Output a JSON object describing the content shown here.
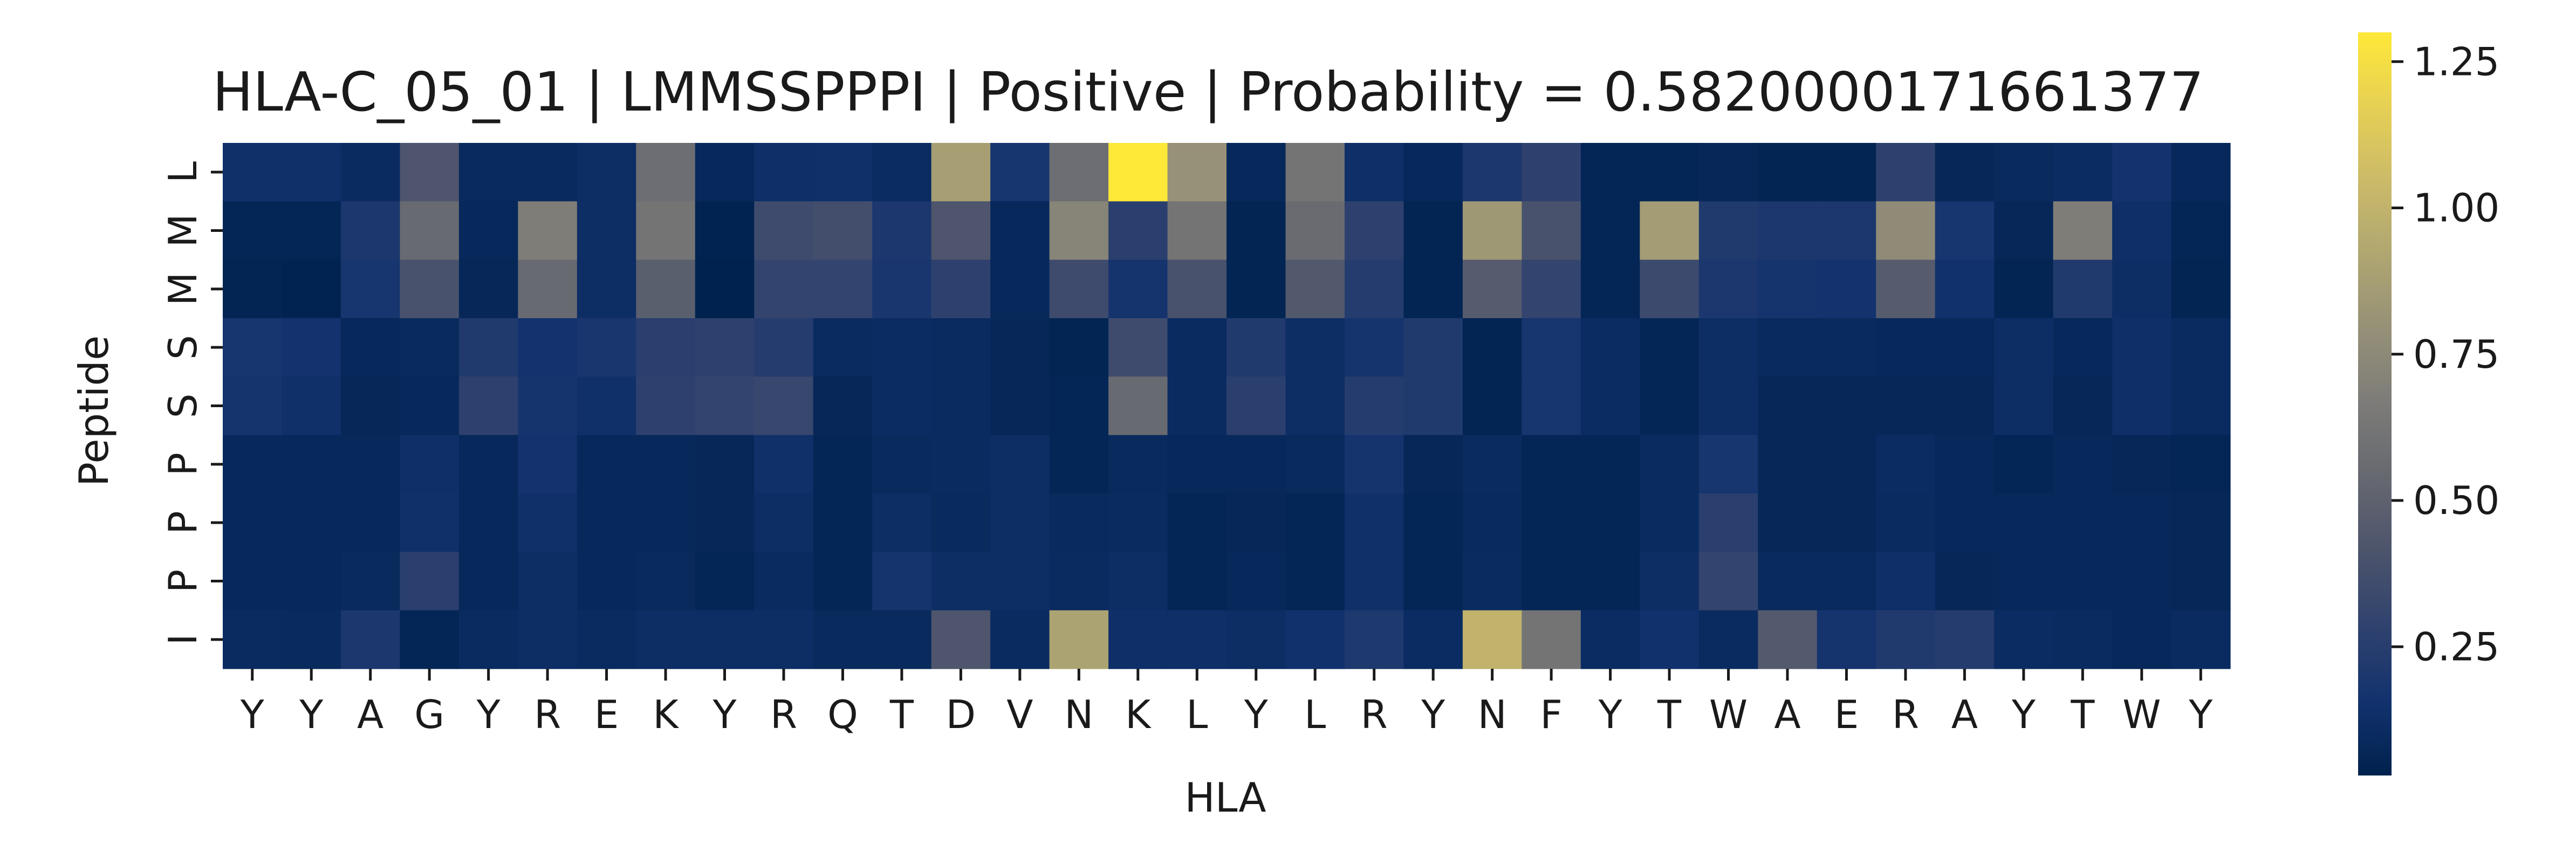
{
  "chart_data": {
    "type": "heatmap",
    "title": "HLA-C_05_01 | LMMSSPPPI | Positive | Probability = 0.5820000171661377",
    "xlabel": "HLA",
    "ylabel": "Peptide",
    "x_categories": [
      "Y",
      "Y",
      "A",
      "G",
      "Y",
      "R",
      "E",
      "K",
      "Y",
      "R",
      "Q",
      "T",
      "D",
      "V",
      "N",
      "K",
      "L",
      "Y",
      "L",
      "R",
      "Y",
      "N",
      "F",
      "Y",
      "T",
      "W",
      "A",
      "E",
      "R",
      "A",
      "Y",
      "T",
      "W",
      "Y"
    ],
    "y_categories": [
      "L",
      "M",
      "M",
      "S",
      "S",
      "P",
      "P",
      "P",
      "I"
    ],
    "values": [
      [
        0.14,
        0.14,
        0.1,
        0.42,
        0.09,
        0.09,
        0.12,
        0.58,
        0.08,
        0.13,
        0.14,
        0.11,
        0.88,
        0.18,
        0.58,
        1.3,
        0.8,
        0.08,
        0.62,
        0.13,
        0.08,
        0.2,
        0.28,
        0.06,
        0.06,
        0.07,
        0.05,
        0.05,
        0.28,
        0.07,
        0.09,
        0.11,
        0.16,
        0.08
      ],
      [
        0.06,
        0.06,
        0.2,
        0.55,
        0.08,
        0.68,
        0.12,
        0.62,
        0.04,
        0.35,
        0.37,
        0.2,
        0.42,
        0.08,
        0.72,
        0.26,
        0.62,
        0.05,
        0.56,
        0.28,
        0.05,
        0.84,
        0.4,
        0.06,
        0.86,
        0.22,
        0.2,
        0.2,
        0.76,
        0.18,
        0.07,
        0.68,
        0.13,
        0.06
      ],
      [
        0.05,
        0.04,
        0.18,
        0.4,
        0.07,
        0.55,
        0.12,
        0.48,
        0.03,
        0.3,
        0.3,
        0.19,
        0.28,
        0.08,
        0.35,
        0.17,
        0.4,
        0.05,
        0.44,
        0.24,
        0.05,
        0.46,
        0.3,
        0.06,
        0.34,
        0.2,
        0.17,
        0.16,
        0.46,
        0.15,
        0.05,
        0.22,
        0.12,
        0.05
      ],
      [
        0.18,
        0.16,
        0.08,
        0.09,
        0.22,
        0.16,
        0.19,
        0.26,
        0.28,
        0.24,
        0.1,
        0.11,
        0.1,
        0.07,
        0.05,
        0.35,
        0.1,
        0.22,
        0.12,
        0.17,
        0.22,
        0.05,
        0.18,
        0.11,
        0.06,
        0.12,
        0.09,
        0.09,
        0.08,
        0.08,
        0.12,
        0.08,
        0.13,
        0.1
      ],
      [
        0.17,
        0.14,
        0.07,
        0.08,
        0.28,
        0.17,
        0.14,
        0.28,
        0.3,
        0.32,
        0.07,
        0.11,
        0.1,
        0.07,
        0.06,
        0.55,
        0.1,
        0.26,
        0.12,
        0.24,
        0.22,
        0.05,
        0.18,
        0.11,
        0.06,
        0.12,
        0.07,
        0.07,
        0.07,
        0.07,
        0.12,
        0.07,
        0.13,
        0.1
      ],
      [
        0.08,
        0.08,
        0.08,
        0.13,
        0.08,
        0.16,
        0.08,
        0.08,
        0.07,
        0.14,
        0.06,
        0.09,
        0.1,
        0.12,
        0.06,
        0.09,
        0.08,
        0.08,
        0.09,
        0.17,
        0.07,
        0.1,
        0.06,
        0.06,
        0.1,
        0.18,
        0.07,
        0.07,
        0.11,
        0.08,
        0.06,
        0.08,
        0.07,
        0.06
      ],
      [
        0.08,
        0.08,
        0.08,
        0.14,
        0.08,
        0.14,
        0.08,
        0.08,
        0.07,
        0.12,
        0.06,
        0.12,
        0.09,
        0.12,
        0.09,
        0.1,
        0.06,
        0.07,
        0.06,
        0.14,
        0.06,
        0.09,
        0.06,
        0.06,
        0.1,
        0.26,
        0.07,
        0.07,
        0.1,
        0.08,
        0.08,
        0.08,
        0.08,
        0.07
      ],
      [
        0.08,
        0.08,
        0.09,
        0.26,
        0.08,
        0.12,
        0.08,
        0.09,
        0.06,
        0.1,
        0.06,
        0.17,
        0.12,
        0.12,
        0.1,
        0.12,
        0.06,
        0.08,
        0.06,
        0.14,
        0.06,
        0.1,
        0.06,
        0.06,
        0.12,
        0.3,
        0.09,
        0.09,
        0.13,
        0.07,
        0.08,
        0.08,
        0.08,
        0.07
      ],
      [
        0.1,
        0.09,
        0.2,
        0.06,
        0.1,
        0.12,
        0.1,
        0.12,
        0.12,
        0.12,
        0.09,
        0.09,
        0.42,
        0.1,
        0.9,
        0.13,
        0.13,
        0.12,
        0.15,
        0.21,
        0.11,
        1.0,
        0.62,
        0.11,
        0.15,
        0.1,
        0.45,
        0.17,
        0.22,
        0.24,
        0.11,
        0.1,
        0.08,
        0.1
      ]
    ],
    "colormap": "cividis",
    "vmin": 0.03,
    "vmax": 1.3,
    "colorbar_ticks": [
      "0.25",
      "0.50",
      "0.75",
      "1.00",
      "1.25"
    ],
    "colorbar_tick_values": [
      0.25,
      0.5,
      0.75,
      1.0,
      1.25
    ],
    "colors": {
      "low": "#00224e",
      "mid": "#7c7b78",
      "high": "#fee838"
    }
  }
}
